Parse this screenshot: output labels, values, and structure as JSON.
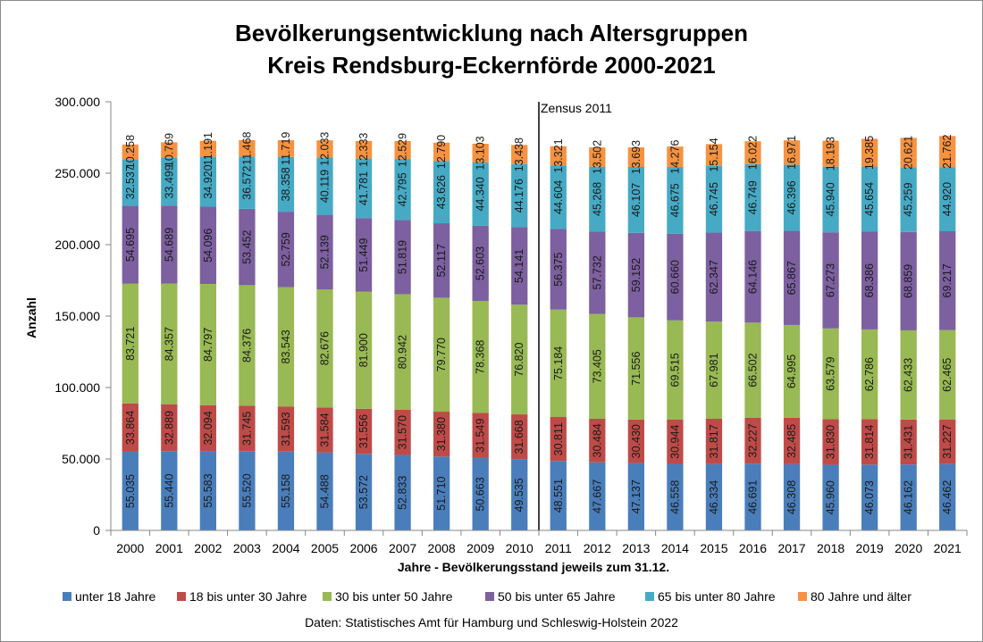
{
  "chart_data": {
    "type": "bar",
    "stacked": true,
    "title": "Bevölkerungsentwicklung nach Altersgruppen",
    "subtitle": "Kreis Rendsburg-Eckernförde 2000-2021",
    "xlabel": "Jahre - Bevölkerungsstand jeweils zum 31.12.",
    "ylabel": "Anzahl",
    "ylim": [
      0,
      300000
    ],
    "yticks": [
      "0",
      "50.000",
      "100.000",
      "150.000",
      "200.000",
      "250.000",
      "300.000"
    ],
    "categories": [
      "2000",
      "2001",
      "2002",
      "2003",
      "2004",
      "2005",
      "2006",
      "2007",
      "2008",
      "2009",
      "2010",
      "2011",
      "2012",
      "2013",
      "2014",
      "2015",
      "2016",
      "2017",
      "2018",
      "2019",
      "2020",
      "2021"
    ],
    "series": [
      {
        "name": "unter 18 Jahre",
        "color": "#4a7ebb",
        "values": [
          55035,
          55440,
          55583,
          55520,
          55158,
          54488,
          53572,
          52833,
          51710,
          50663,
          49535,
          48551,
          47667,
          47137,
          46558,
          46334,
          46691,
          46308,
          45960,
          46073,
          46162,
          46462
        ],
        "labels": [
          "55.035",
          "55.440",
          "55.583",
          "55.520",
          "55.158",
          "54.488",
          "53.572",
          "52.833",
          "51.710",
          "50.663",
          "49.535",
          "48.551",
          "47.667",
          "47.137",
          "46.558",
          "46.334",
          "46.691",
          "46.308",
          "45.960",
          "46.073",
          "46.162",
          "46.462"
        ]
      },
      {
        "name": "18 bis unter 30 Jahre",
        "color": "#be4b48",
        "values": [
          33864,
          32889,
          32094,
          31745,
          31593,
          31584,
          31556,
          31570,
          31380,
          31549,
          31668,
          30811,
          30484,
          30430,
          30944,
          31817,
          32227,
          32485,
          31830,
          31814,
          31431,
          31227
        ],
        "labels": [
          "33.864",
          "32.889",
          "32.094",
          "31.745",
          "31.593",
          "31.584",
          "31.556",
          "31.570",
          "31.380",
          "31.549",
          "31.668",
          "30.811",
          "30.484",
          "30.430",
          "30.944",
          "31.817",
          "32.227",
          "32.485",
          "31.830",
          "31.814",
          "31.431",
          "31.227"
        ]
      },
      {
        "name": "30 bis unter 50 Jahre",
        "color": "#98b954",
        "values": [
          83721,
          84357,
          84797,
          84376,
          83543,
          82676,
          81900,
          80942,
          79770,
          78368,
          76820,
          75184,
          73405,
          71556,
          69515,
          67981,
          66502,
          64995,
          63579,
          62786,
          62433,
          62465
        ],
        "labels": [
          "83.721",
          "84.357",
          "84.797",
          "84.376",
          "83.543",
          "82.676",
          "81.900",
          "80.942",
          "79.770",
          "78.368",
          "76.820",
          "75.184",
          "73.405",
          "71.556",
          "69.515",
          "67.981",
          "66.502",
          "64.995",
          "63.579",
          "62.786",
          "62.433",
          "62.465"
        ]
      },
      {
        "name": "50 bis unter 65 Jahre",
        "color": "#7d60a0",
        "values": [
          54695,
          54689,
          54096,
          53452,
          52759,
          52139,
          51449,
          51819,
          52117,
          52603,
          54141,
          56375,
          57732,
          59152,
          60660,
          62347,
          64146,
          65867,
          67273,
          68386,
          68859,
          69217
        ],
        "labels": [
          "54.695",
          "54.689",
          "54.096",
          "53.452",
          "52.759",
          "52.139",
          "51.449",
          "51.819",
          "52.117",
          "52.603",
          "54.141",
          "56.375",
          "57.732",
          "59.152",
          "60.660",
          "62.347",
          "64.146",
          "65.867",
          "67.273",
          "68.386",
          "68.859",
          "69.217"
        ]
      },
      {
        "name": "65 bis unter 80 Jahre",
        "color": "#46aac5",
        "values": [
          32537,
          33499,
          34920,
          36572,
          38358,
          40119,
          41781,
          42795,
          43626,
          44340,
          44176,
          44604,
          45268,
          46107,
          46675,
          46745,
          46749,
          46396,
          45940,
          45654,
          45259,
          44920
        ],
        "labels": [
          "32.537",
          "33.499",
          "34.920",
          "36.572",
          "38.358",
          "40.119",
          "41.781",
          "42.795",
          "43.626",
          "44.340",
          "44.176",
          "44.604",
          "45.268",
          "46.107",
          "46.675",
          "46.745",
          "46.749",
          "46.396",
          "45.940",
          "45.654",
          "45.259",
          "44.920"
        ]
      },
      {
        "name": "80 Jahre und älter",
        "color": "#f69240",
        "values": [
          10258,
          10769,
          11191,
          11468,
          11719,
          12033,
          12333,
          12529,
          12790,
          13103,
          13438,
          13321,
          13502,
          13693,
          14276,
          15154,
          16022,
          16971,
          18193,
          19385,
          20621,
          21762
        ],
        "labels": [
          "10.258",
          "10.769",
          "11.191",
          "11.468",
          "11.719",
          "12.033",
          "12.333",
          "12.529",
          "12.790",
          "13.103",
          "13.438",
          "13.321",
          "13.502",
          "13.693",
          "14.276",
          "15.154",
          "16.022",
          "16.971",
          "18.193",
          "19.385",
          "20.621",
          "21.762"
        ]
      }
    ],
    "annotation": {
      "text": "Zensus 2011",
      "after_category": "2010"
    },
    "legend_position": "bottom",
    "grid": false,
    "source": "Daten: Statistisches Amt für Hamburg und Schleswig-Holstein 2022"
  }
}
